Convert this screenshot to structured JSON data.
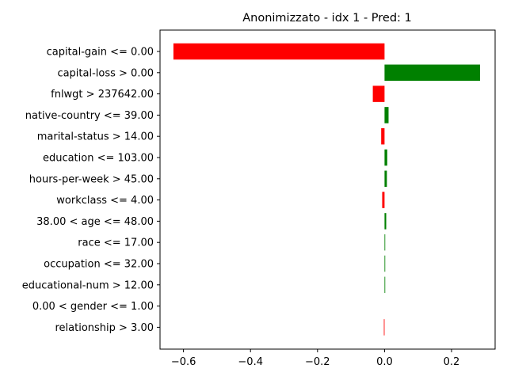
{
  "chart_data": {
    "type": "bar",
    "orientation": "horizontal",
    "title": "Anonimizzato - idx 1 - Pred: 1",
    "xlabel": "",
    "ylabel": "",
    "xlim": [
      -0.67,
      0.33
    ],
    "xticks": [
      -0.6,
      -0.4,
      -0.2,
      0.0,
      0.2
    ],
    "xtick_labels": [
      "−0.6",
      "−0.4",
      "−0.2",
      "0.0",
      "0.2"
    ],
    "grid": false,
    "legend": false,
    "categories": [
      "capital-gain <= 0.00",
      "capital-loss > 0.00",
      "fnlwgt > 237642.00",
      "native-country <= 39.00",
      "marital-status > 14.00",
      "education <= 103.00",
      "hours-per-week > 45.00",
      "workclass <= 4.00",
      "38.00 < age <= 48.00",
      "race <= 17.00",
      "occupation <= 32.00",
      "educational-num > 12.00",
      "0.00 < gender <= 1.00",
      "relationship > 3.00"
    ],
    "values": [
      -0.63,
      0.285,
      -0.035,
      0.012,
      -0.01,
      0.008,
      0.007,
      -0.007,
      0.005,
      0.002,
      0.002,
      0.002,
      0.0,
      -0.002
    ],
    "colors": {
      "positive": "#008000",
      "negative": "#ff0000"
    }
  }
}
